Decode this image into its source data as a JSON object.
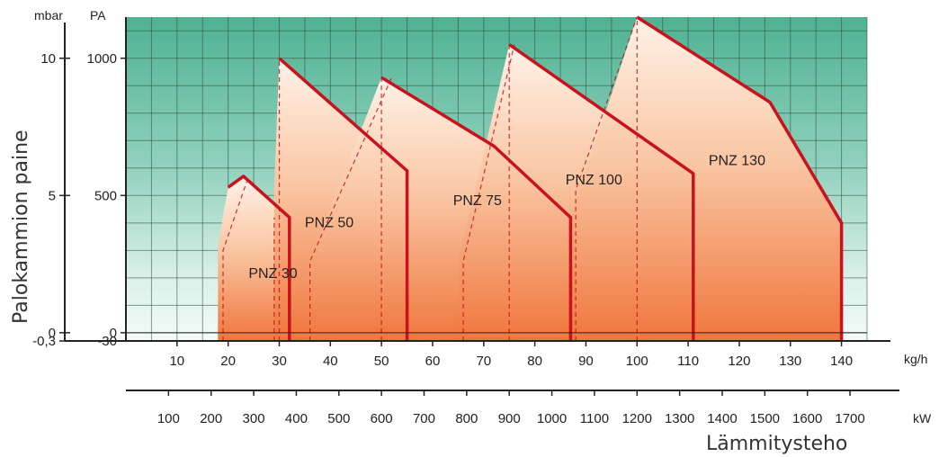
{
  "chart_data": {
    "type": "area",
    "title": "",
    "ylabel": "Palokammion paine",
    "xlabel": "Lämmitysteho",
    "y_units": {
      "left": "mbar",
      "right": "PA"
    },
    "x_units": {
      "top": "kg/h",
      "bottom": "kW"
    },
    "ylim": [
      -30,
      1150
    ],
    "xlim": [
      0,
      145
    ],
    "y_ticks_mbar": [
      {
        "label": "10",
        "value": 1000
      },
      {
        "label": "5",
        "value": 500
      },
      {
        "label": "0",
        "value": 0
      },
      {
        "label": "-0,3",
        "value": -30
      }
    ],
    "y_ticks_pa": [
      {
        "label": "1000",
        "value": 1000
      },
      {
        "label": "500",
        "value": 500
      },
      {
        "label": "0",
        "value": 0
      },
      {
        "label": "-30",
        "value": -30
      }
    ],
    "x_ticks_kgh": [
      "10",
      "20",
      "30",
      "40",
      "50",
      "60",
      "70",
      "80",
      "90",
      "100",
      "110",
      "120",
      "130",
      "140"
    ],
    "x_ticks_kw": [
      "100",
      "200",
      "300",
      "400",
      "500",
      "600",
      "700",
      "800",
      "900",
      "1000",
      "1100",
      "1200",
      "1300",
      "1400",
      "1500",
      "1600",
      "1700"
    ],
    "grid": true,
    "series": [
      {
        "name": "PNZ 30",
        "label_at": [
          24,
          200
        ],
        "points": [
          [
            18,
            -30
          ],
          [
            18,
            320
          ],
          [
            20,
            530
          ],
          [
            23,
            570
          ],
          [
            32,
            420
          ],
          [
            32,
            -30
          ]
        ],
        "dashed": [
          [
            [
              19,
              -30
            ],
            [
              19,
              300
            ],
            [
              24,
              570
            ]
          ],
          [
            [
              29,
              -30
            ],
            [
              29,
              420
            ]
          ]
        ]
      },
      {
        "name": "PNZ 50",
        "label_at": [
          35,
          385
        ],
        "points": [
          [
            29,
            -30
          ],
          [
            29,
            520
          ],
          [
            30,
            1000
          ],
          [
            55,
            590
          ],
          [
            55,
            -30
          ]
        ],
        "dashed": [
          [
            [
              30,
              -30
            ],
            [
              30,
              1000
            ]
          ],
          [
            [
              36,
              -30
            ],
            [
              36,
              260
            ],
            [
              52,
              930
            ]
          ]
        ]
      },
      {
        "name": "PNZ 75",
        "label_at": [
          64,
          465
        ],
        "points": [
          [
            36,
            -30
          ],
          [
            36,
            260
          ],
          [
            50,
            930
          ],
          [
            72,
            680
          ],
          [
            87,
            420
          ],
          [
            87,
            -30
          ]
        ],
        "dashed": [
          [
            [
              50,
              -30
            ],
            [
              50,
              930
            ]
          ],
          [
            [
              66,
              -30
            ],
            [
              66,
              260
            ],
            [
              76,
              1050
            ]
          ]
        ]
      },
      {
        "name": "PNZ 100",
        "label_at": [
          86,
          540
        ],
        "points": [
          [
            65,
            -30
          ],
          [
            65,
            260
          ],
          [
            75,
            1050
          ],
          [
            111,
            580
          ],
          [
            111,
            -30
          ]
        ],
        "dashed": [
          [
            [
              75,
              -30
            ],
            [
              75,
              1050
            ]
          ],
          [
            [
              88,
              -30
            ],
            [
              88,
              520
            ],
            [
              100,
              1150
            ]
          ]
        ]
      },
      {
        "name": "PNZ 130",
        "label_at": [
          114,
          610
        ],
        "points": [
          [
            87,
            -30
          ],
          [
            87,
            420
          ],
          [
            100,
            1150
          ],
          [
            126,
            840
          ],
          [
            140,
            400
          ],
          [
            140,
            -30
          ]
        ],
        "dashed": [
          [
            [
              100,
              -30
            ],
            [
              100,
              1150
            ]
          ]
        ]
      }
    ],
    "colors": {
      "background_fill": "#5ab89d",
      "envelope_fill": "#f28a5a",
      "boundary": "#c8121e",
      "grid": "#2d4a3a"
    }
  }
}
